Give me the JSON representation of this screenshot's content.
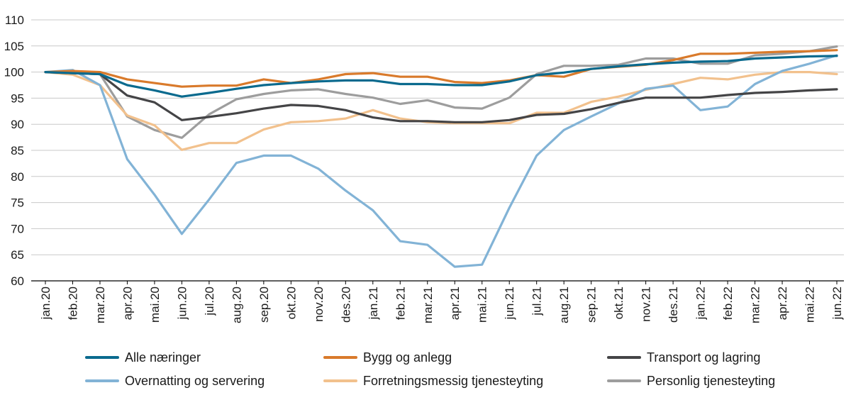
{
  "chart_data": {
    "type": "line",
    "title": "",
    "xlabel": "",
    "ylabel": "",
    "ylim": [
      60,
      110
    ],
    "yticks": [
      60,
      65,
      70,
      75,
      80,
      85,
      90,
      95,
      100,
      105,
      110
    ],
    "grid": true,
    "legend_position": "bottom",
    "categories": [
      "jan.20",
      "feb.20",
      "mar.20",
      "apr.20",
      "mai.20",
      "jun.20",
      "jul.20",
      "aug.20",
      "sep.20",
      "okt.20",
      "nov.20",
      "des.20",
      "jan.21",
      "feb.21",
      "mar.21",
      "apr.21",
      "mai.21",
      "jun.21",
      "jul.21",
      "aug.21",
      "sep.21",
      "okt.21",
      "nov.21",
      "des.21",
      "jan.22",
      "feb.22",
      "mar.22",
      "apr.22",
      "mai.22",
      "jun.22"
    ],
    "series": [
      {
        "name": "Alle næringer",
        "color": "#0a6a8e",
        "values": [
          100,
          99.8,
          99.6,
          97.5,
          96.5,
          95.3,
          96.0,
          96.8,
          97.5,
          97.9,
          98.2,
          98.4,
          98.4,
          97.7,
          97.7,
          97.5,
          97.5,
          98.2,
          99.4,
          99.9,
          100.6,
          101.1,
          101.5,
          101.8,
          102.0,
          102.1,
          102.6,
          102.8,
          103.0,
          103.1
        ]
      },
      {
        "name": "Bygg og anlegg",
        "color": "#d97a2b",
        "values": [
          100,
          100.2,
          100.0,
          98.6,
          97.9,
          97.2,
          97.4,
          97.4,
          98.6,
          97.9,
          98.6,
          99.6,
          99.8,
          99.1,
          99.1,
          98.1,
          97.9,
          98.4,
          99.4,
          99.1,
          100.6,
          101.0,
          101.4,
          102.3,
          103.5,
          103.5,
          103.7,
          103.9,
          104.0,
          104.2
        ]
      },
      {
        "name": "Transport og lagring",
        "color": "#444446",
        "values": [
          100,
          99.8,
          99.6,
          95.5,
          94.2,
          90.8,
          91.4,
          92.1,
          93.0,
          93.7,
          93.5,
          92.7,
          91.3,
          90.6,
          90.6,
          90.4,
          90.4,
          90.8,
          91.8,
          92.0,
          92.9,
          94.1,
          95.1,
          95.1,
          95.1,
          95.6,
          96.0,
          96.2,
          96.5,
          96.7
        ]
      },
      {
        "name": "Overnatting og servering",
        "color": "#82b3d6",
        "values": [
          100,
          100.4,
          97.5,
          83.3,
          76.5,
          69.0,
          75.6,
          82.6,
          84.0,
          84.0,
          81.5,
          77.3,
          73.5,
          67.6,
          66.9,
          62.7,
          63.1,
          74.0,
          84.0,
          88.9,
          91.5,
          94.0,
          96.8,
          97.4,
          92.7,
          93.4,
          97.7,
          100.2,
          101.6,
          103.2
        ]
      },
      {
        "name": "Forretningsmessig tjenesteyting",
        "color": "#f2c18d",
        "values": [
          100,
          99.5,
          97.5,
          91.7,
          89.8,
          85.1,
          86.4,
          86.4,
          89.0,
          90.4,
          90.6,
          91.1,
          92.7,
          91.1,
          90.4,
          90.2,
          90.2,
          90.2,
          92.2,
          92.2,
          94.3,
          95.3,
          96.6,
          97.7,
          98.9,
          98.6,
          99.5,
          100.0,
          100.0,
          99.6
        ]
      },
      {
        "name": "Personlig tjenesteyting",
        "color": "#9d9d9d",
        "values": [
          100,
          99.8,
          99.6,
          91.5,
          88.9,
          87.4,
          91.9,
          94.8,
          95.8,
          96.5,
          96.7,
          95.8,
          95.1,
          93.9,
          94.6,
          93.2,
          93.0,
          95.1,
          99.6,
          101.2,
          101.2,
          101.4,
          102.6,
          102.6,
          101.6,
          101.6,
          103.2,
          103.5,
          104.0,
          104.9
        ]
      }
    ]
  }
}
